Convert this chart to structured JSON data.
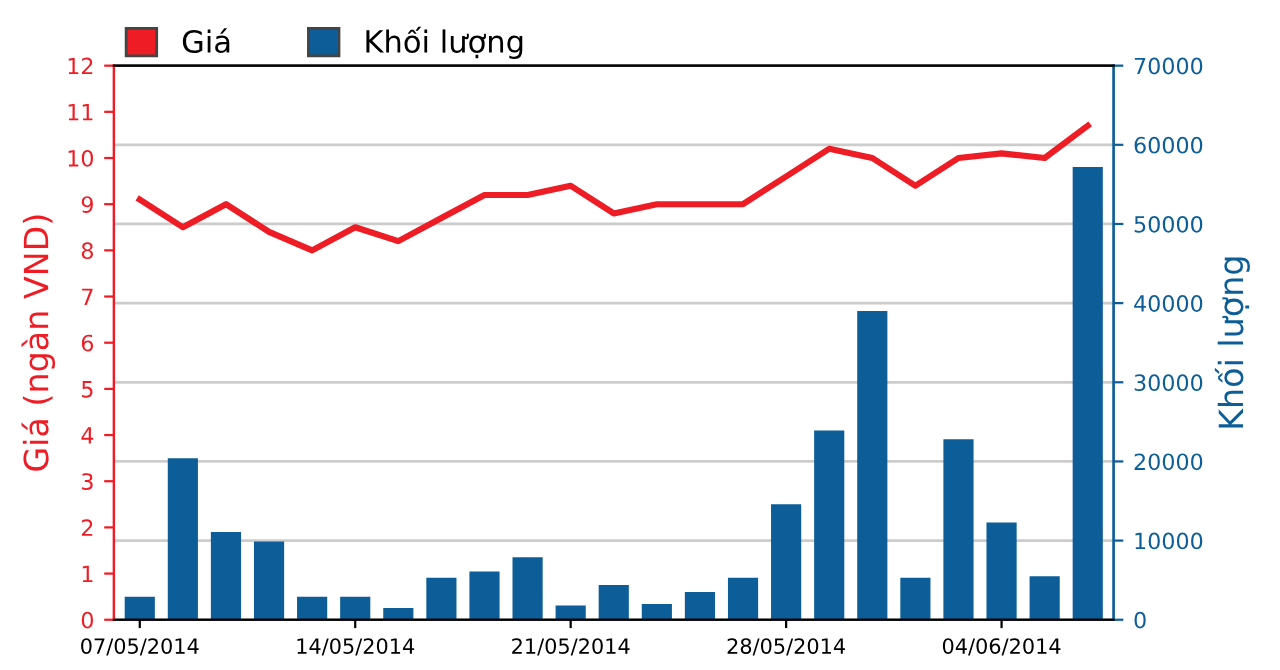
{
  "chart_data": {
    "type": "line",
    "ylabel": "Giá (ngàn VND)",
    "y2label": "Khối lượng",
    "categories": [
      "07/05/2014",
      null,
      null,
      null,
      null,
      "14/05/2014",
      null,
      null,
      null,
      null,
      "21/05/2014",
      null,
      null,
      null,
      null,
      "28/05/2014",
      null,
      null,
      null,
      null,
      "04/06/2014",
      null,
      null
    ],
    "series": [
      {
        "name": "Giá",
        "color": "#ee1c25",
        "values": [
          9.1,
          8.5,
          9.0,
          8.4,
          8.0,
          8.5,
          8.2,
          8.7,
          9.2,
          9.2,
          9.4,
          8.8,
          9.0,
          9.0,
          9.0,
          9.6,
          10.2,
          10.0,
          9.4,
          10.0,
          10.1,
          10.0,
          10.7
        ]
      },
      {
        "name": "Khối lượng",
        "type": "bar",
        "axis": "y2",
        "color": "#0d5e98",
        "values": [
          2900,
          20400,
          11100,
          9900,
          2900,
          2900,
          1500,
          5300,
          6100,
          7900,
          1800,
          4400,
          2000,
          3500,
          5300,
          14600,
          23900,
          39000,
          5300,
          22800,
          12300,
          5500,
          57200
        ]
      }
    ],
    "ylim": [
      0,
      12
    ],
    "yticks": [
      0,
      1,
      2,
      3,
      4,
      5,
      6,
      7,
      8,
      9,
      10,
      11,
      12
    ],
    "y2lim": [
      0,
      70000
    ],
    "y2ticks": [
      0,
      10000,
      20000,
      30000,
      40000,
      50000,
      60000,
      70000
    ],
    "grid": "y",
    "legend": "top left"
  }
}
